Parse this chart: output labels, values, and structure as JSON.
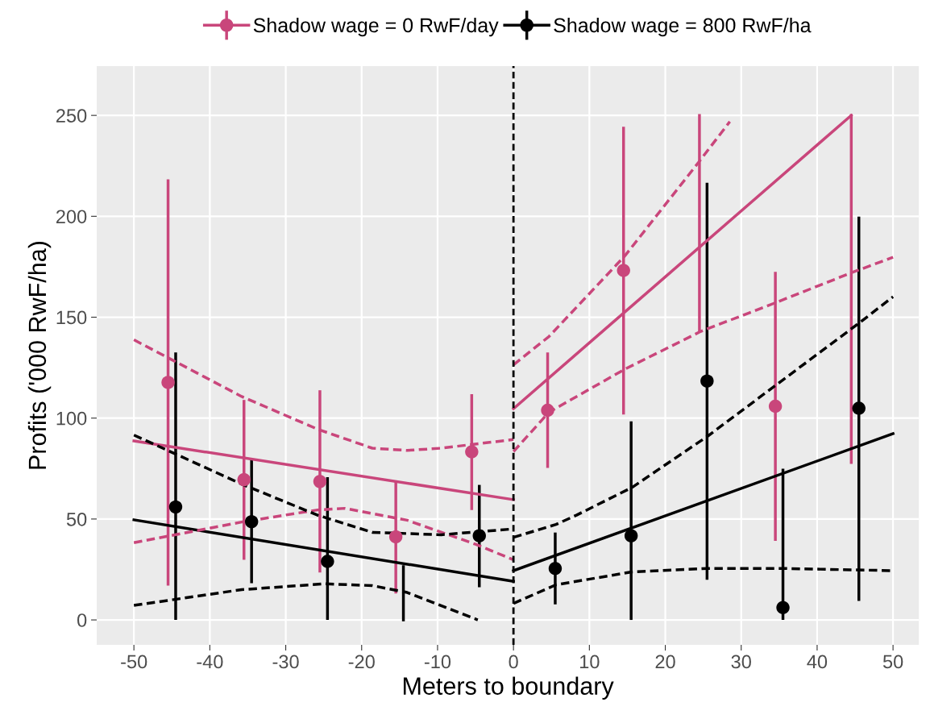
{
  "chart_data": {
    "type": "scatter",
    "xlabel": "Meters to boundary",
    "ylabel": "Profits ('000 RwF/ha)",
    "xlim": [
      -54.9,
      53.4
    ],
    "ylim": [
      -12.4,
      274.4
    ],
    "xticks": [
      -50,
      -40,
      -30,
      -20,
      -10,
      0,
      10,
      20,
      30,
      40,
      50
    ],
    "yticks": [
      0,
      50,
      100,
      150,
      200,
      250
    ],
    "grid": true,
    "legend": "top",
    "ref_lines": [
      {
        "axis": "x",
        "value": 0,
        "color": "#000000",
        "line_style": "dashed"
      }
    ],
    "series": [
      {
        "name": "Shadow wage = 0 RwF/day",
        "color": "#c9467b",
        "marker": "circle",
        "x": [
          -45.5,
          -35.5,
          -25.5,
          -15.5,
          -5.5,
          4.5,
          14.5,
          34.5
        ],
        "values": [
          117.7,
          69.5,
          68.6,
          41.2,
          83.3,
          103.9,
          173.2,
          105.9
        ],
        "errors": [
          [
            17,
            218.3
          ],
          [
            29.8,
            109
          ],
          [
            23.5,
            113.8
          ],
          [
            13.1,
            68.5
          ],
          [
            54.5,
            111.9
          ],
          [
            75.3,
            132.5
          ],
          [
            101.8,
            244.4
          ],
          [
            39.2,
            172.5
          ]
        ]
      },
      {
        "name": "Shadow wage = 800 RwF/ha",
        "color": "#000000",
        "marker": "circle",
        "x": [
          -44.5,
          -34.5,
          -24.5,
          -4.5,
          5.5,
          15.5,
          25.5,
          35.5,
          45.5
        ],
        "values": [
          56,
          48.7,
          29,
          41.7,
          25.5,
          41.7,
          118.4,
          6.1,
          104.9
        ],
        "errors": [
          [
            0,
            132.5
          ],
          [
            18.2,
            79.2
          ],
          [
            0,
            70.7
          ],
          [
            16.2,
            66.9
          ],
          [
            7.7,
            43.3
          ],
          [
            0,
            98.4
          ],
          [
            19.9,
            216.6
          ],
          [
            0,
            74.9
          ],
          [
            9.4,
            199.8
          ]
        ]
      },
      {
        "color": "#c9467b",
        "type": "line",
        "line_style": "solid",
        "x": [
          24.5,
          24.5
        ],
        "values": [
          143.4,
          250
        ]
      },
      {
        "color": "#c9467b",
        "type": "line",
        "line_style": "solid",
        "x": [
          44.5,
          44.5
        ],
        "values": [
          78,
          250
        ]
      },
      {
        "color": "#000000",
        "type": "line",
        "line_style": "solid",
        "x": [
          -14.5,
          -14.5
        ],
        "values": [
          0,
          26.4
        ]
      },
      {
        "color": "#c9467b",
        "type": "line",
        "line_style": "solid",
        "x": [
          -50,
          0
        ],
        "values": [
          88.7,
          59.6
        ]
      },
      {
        "color": "#000000",
        "type": "line",
        "line_style": "solid",
        "x": [
          -50,
          0
        ],
        "values": [
          49.6,
          19.1
        ]
      },
      {
        "color": "#c9467b",
        "type": "line",
        "line_style": "solid",
        "x": [
          0,
          44.5
        ],
        "values": [
          104.7,
          250
        ]
      },
      {
        "color": "#000000",
        "type": "line",
        "line_style": "solid",
        "x": [
          0,
          50
        ],
        "values": [
          24.4,
          92.3
        ]
      },
      {
        "color": "#c9467b",
        "type": "line",
        "line_style": "dashed",
        "x": [
          -50,
          -35.8,
          -25.8,
          -18.6,
          -14,
          -9.5,
          0
        ],
        "values": [
          138.8,
          110.7,
          94.5,
          85.1,
          84,
          85.1,
          89.4
        ]
      },
      {
        "color": "#c9467b",
        "type": "line",
        "line_style": "dashed",
        "x": [
          -50,
          -35.8,
          -25.8,
          -22.2,
          -14,
          -5,
          0
        ],
        "values": [
          38.3,
          48.5,
          54.5,
          55.3,
          49.4,
          37.5,
          29.8
        ]
      },
      {
        "color": "#000000",
        "type": "line",
        "line_style": "dashed",
        "x": [
          -50,
          -35.8,
          -25.8,
          -18.6,
          -9.5,
          0
        ],
        "values": [
          91.6,
          67.3,
          51.9,
          43.4,
          42.2,
          45.1
        ]
      },
      {
        "color": "#000000",
        "type": "line",
        "line_style": "dashed",
        "x": [
          -50,
          -35.8,
          -24.9,
          -18.6,
          -14,
          -4.7
        ],
        "values": [
          7.2,
          15,
          17.9,
          17,
          13.6,
          0
        ]
      },
      {
        "color": "#c9467b",
        "type": "line",
        "line_style": "dashed",
        "x": [
          0,
          4.7,
          14.7,
          24.5,
          28.5
        ],
        "values": [
          126.4,
          140.5,
          180.5,
          227.3,
          246.9
        ]
      },
      {
        "color": "#c9467b",
        "type": "line",
        "line_style": "dashed",
        "x": [
          0,
          4.7,
          14.7,
          24.7,
          34.4,
          44.7,
          50
        ],
        "values": [
          83.4,
          103,
          124.3,
          143,
          157,
          172.3,
          179.7
        ]
      },
      {
        "color": "#000000",
        "type": "line",
        "line_style": "dashed",
        "x": [
          0,
          5.6,
          8.3,
          15.6,
          25.6,
          34.7,
          45.6,
          50
        ],
        "values": [
          40.9,
          47.3,
          51.9,
          65.6,
          91.1,
          116.7,
          147.3,
          160.1
        ]
      },
      {
        "color": "#000000",
        "type": "line",
        "line_style": "dashed",
        "x": [
          0,
          5.6,
          15.6,
          25.6,
          35.6,
          50
        ],
        "values": [
          8.2,
          17.4,
          23.8,
          25.5,
          25.5,
          24.4
        ]
      }
    ]
  }
}
